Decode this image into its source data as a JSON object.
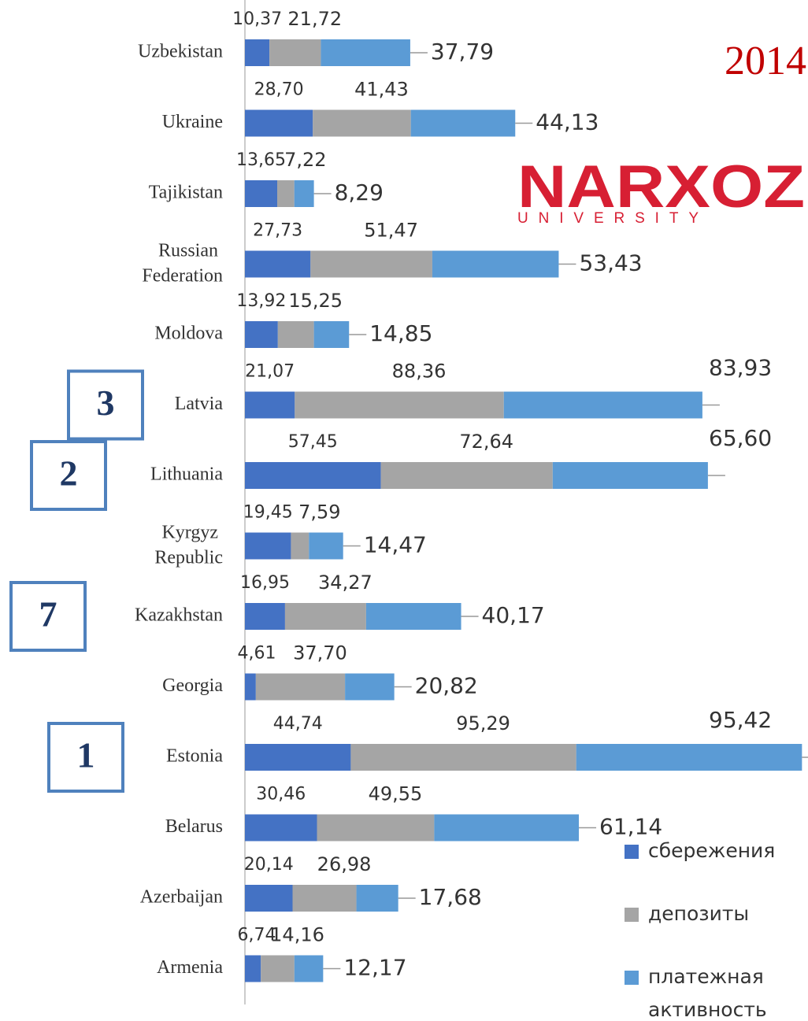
{
  "chart_data": {
    "type": "stacked_barh",
    "title": "2014",
    "logo": {
      "name": "NARXOZ",
      "subtitle": "UNIVERSITY"
    },
    "categories": [
      "Uzbekistan",
      "Ukraine",
      "Tajikistan",
      "Russian Federation",
      "Moldova",
      "Latvia",
      "Lithuania",
      "Kyrgyz Republic",
      "Kazakhstan",
      "Georgia",
      "Estonia",
      "Belarus",
      "Azerbaijan",
      "Armenia"
    ],
    "series": [
      {
        "name": "сбережения",
        "color": "#4472c4",
        "values": [
          10.37,
          28.7,
          13.65,
          27.73,
          13.92,
          21.07,
          57.45,
          19.45,
          16.95,
          4.61,
          44.74,
          30.46,
          20.14,
          6.74
        ],
        "value_labels": [
          "10,37",
          "28,70",
          "13,65",
          "27,73",
          "13,92",
          "21,07",
          "57,45",
          "19,45",
          "16,95",
          "4,61",
          "44,74",
          "30,46",
          "20,14",
          "6,74"
        ]
      },
      {
        "name": "депозиты",
        "color": "#a5a5a5",
        "values": [
          21.72,
          41.43,
          7.22,
          51.47,
          15.25,
          88.36,
          72.64,
          7.59,
          34.27,
          37.7,
          95.29,
          49.55,
          26.98,
          14.16
        ],
        "value_labels": [
          "21,72",
          "41,43",
          "7,22",
          "51,47",
          "15,25",
          "88,36",
          "72,64",
          "7,59",
          "34,27",
          "37,70",
          "95,29",
          "49,55",
          "26,98",
          "14,16"
        ]
      },
      {
        "name": "платежная активность",
        "color": "#5b9bd5",
        "values": [
          37.79,
          44.13,
          8.29,
          53.43,
          14.85,
          83.93,
          65.6,
          14.47,
          40.17,
          20.82,
          95.42,
          61.14,
          17.68,
          12.17
        ],
        "value_labels": [
          "37,79",
          "44,13",
          "8,29",
          "53,43",
          "14,85",
          "83,93",
          "65,60",
          "14,47",
          "40,17",
          "20,82",
          "95,42",
          "61,14",
          "17,68",
          "12,17"
        ]
      }
    ],
    "xlim": [
      0,
      236
    ],
    "annotations": [
      {
        "text": "3",
        "category": "Latvia"
      },
      {
        "text": "2",
        "category": "Lithuania"
      },
      {
        "text": "7",
        "category": "Kazakhstan"
      },
      {
        "text": "1",
        "category": "Estonia"
      }
    ]
  }
}
